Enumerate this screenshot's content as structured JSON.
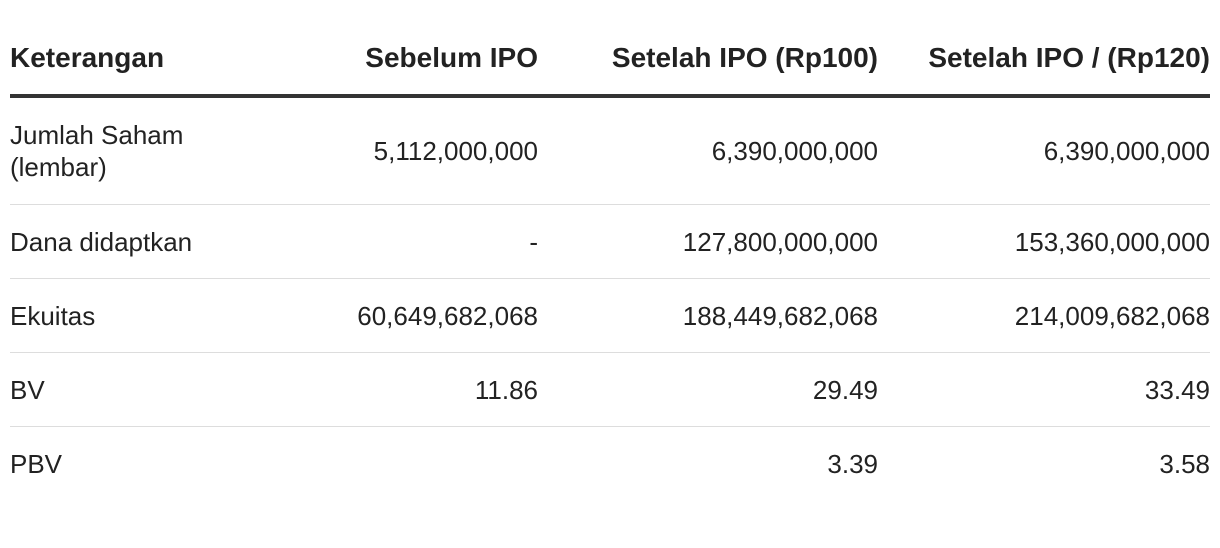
{
  "table": {
    "headers": [
      "Keterangan",
      "Sebelum IPO",
      "Setelah IPO (Rp100)",
      "Setelah IPO / (Rp120)"
    ],
    "rows": [
      [
        "Jumlah Saham (lembar)",
        "5,112,000,000",
        "6,390,000,000",
        "6,390,000,000"
      ],
      [
        "Dana didaptkan",
        "-",
        "127,800,000,000",
        "153,360,000,000"
      ],
      [
        "Ekuitas",
        "60,649,682,068",
        "188,449,682,068",
        "214,009,682,068"
      ],
      [
        "BV",
        "11.86",
        "29.49",
        "33.49"
      ],
      [
        "PBV",
        "",
        "3.39",
        "3.58"
      ]
    ]
  }
}
